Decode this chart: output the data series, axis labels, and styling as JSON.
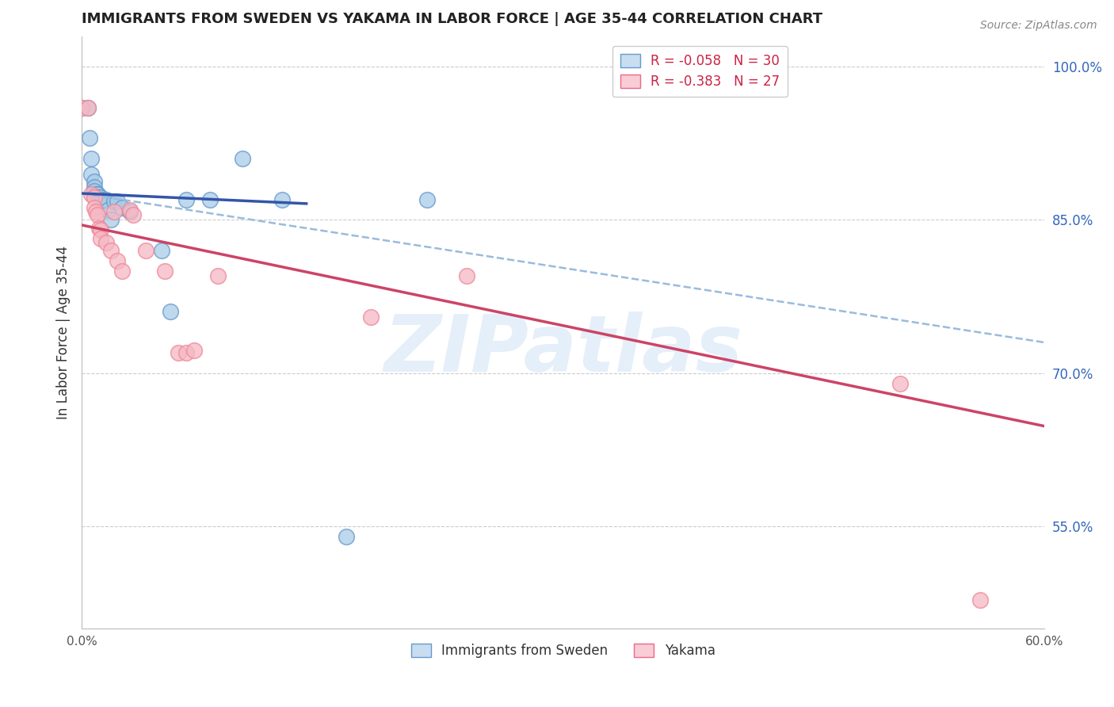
{
  "title": "IMMIGRANTS FROM SWEDEN VS YAKAMA IN LABOR FORCE | AGE 35-44 CORRELATION CHART",
  "source": "Source: ZipAtlas.com",
  "ylabel": "In Labor Force | Age 35-44",
  "xlim": [
    0.0,
    0.6
  ],
  "ylim": [
    0.45,
    1.03
  ],
  "xticks": [
    0.0,
    0.1,
    0.2,
    0.3,
    0.4,
    0.5,
    0.6
  ],
  "xtick_labels": [
    "0.0%",
    "",
    "",
    "",
    "",
    "",
    "60.0%"
  ],
  "yticks_right": [
    0.55,
    0.7,
    0.85,
    1.0
  ],
  "ytick_labels_right": [
    "55.0%",
    "70.0%",
    "85.0%",
    "100.0%"
  ],
  "legend_R_entries": [
    {
      "label": "R = -0.058   N = 30",
      "face": "#c8ddf0",
      "edge": "#6699cc"
    },
    {
      "label": "R = -0.383   N = 27",
      "face": "#f9ccd6",
      "edge": "#ee6688"
    }
  ],
  "legend_labels_bottom": [
    "Immigrants from Sweden",
    "Yakama"
  ],
  "sweden_face_color": "#a8cce8",
  "sweden_edge_color": "#6699cc",
  "yakama_face_color": "#f5b8c4",
  "yakama_edge_color": "#ee8899",
  "sweden_line_color": "#3355aa",
  "yakama_line_color": "#cc4466",
  "sweden_dashed_color": "#99bbdd",
  "grid_color": "#cccccc",
  "background_color": "#ffffff",
  "watermark": "ZIPatlas",
  "sweden_scatter": [
    [
      0.0,
      0.96
    ],
    [
      0.004,
      0.96
    ],
    [
      0.005,
      0.93
    ],
    [
      0.006,
      0.91
    ],
    [
      0.006,
      0.895
    ],
    [
      0.008,
      0.888
    ],
    [
      0.008,
      0.882
    ],
    [
      0.008,
      0.878
    ],
    [
      0.009,
      0.875
    ],
    [
      0.01,
      0.875
    ],
    [
      0.01,
      0.875
    ],
    [
      0.011,
      0.872
    ],
    [
      0.012,
      0.872
    ],
    [
      0.012,
      0.868
    ],
    [
      0.013,
      0.87
    ],
    [
      0.015,
      0.87
    ],
    [
      0.016,
      0.86
    ],
    [
      0.018,
      0.85
    ],
    [
      0.02,
      0.868
    ],
    [
      0.022,
      0.868
    ],
    [
      0.025,
      0.862
    ],
    [
      0.03,
      0.858
    ],
    [
      0.05,
      0.82
    ],
    [
      0.055,
      0.76
    ],
    [
      0.065,
      0.87
    ],
    [
      0.08,
      0.87
    ],
    [
      0.1,
      0.91
    ],
    [
      0.125,
      0.87
    ],
    [
      0.165,
      0.54
    ],
    [
      0.215,
      0.87
    ]
  ],
  "yakama_scatter": [
    [
      0.0,
      0.96
    ],
    [
      0.004,
      0.96
    ],
    [
      0.006,
      0.875
    ],
    [
      0.008,
      0.872
    ],
    [
      0.008,
      0.862
    ],
    [
      0.009,
      0.858
    ],
    [
      0.01,
      0.855
    ],
    [
      0.011,
      0.842
    ],
    [
      0.012,
      0.84
    ],
    [
      0.012,
      0.832
    ],
    [
      0.015,
      0.828
    ],
    [
      0.018,
      0.82
    ],
    [
      0.02,
      0.858
    ],
    [
      0.022,
      0.81
    ],
    [
      0.025,
      0.8
    ],
    [
      0.03,
      0.86
    ],
    [
      0.032,
      0.855
    ],
    [
      0.04,
      0.82
    ],
    [
      0.052,
      0.8
    ],
    [
      0.06,
      0.72
    ],
    [
      0.065,
      0.72
    ],
    [
      0.07,
      0.722
    ],
    [
      0.085,
      0.795
    ],
    [
      0.18,
      0.755
    ],
    [
      0.24,
      0.795
    ],
    [
      0.51,
      0.69
    ],
    [
      0.56,
      0.478
    ]
  ],
  "sweden_solid_line": [
    [
      0.0,
      0.876
    ],
    [
      0.14,
      0.866
    ]
  ],
  "sweden_dashed_line": [
    [
      0.0,
      0.876
    ],
    [
      0.6,
      0.73
    ]
  ],
  "yakama_solid_line": [
    [
      0.0,
      0.845
    ],
    [
      0.6,
      0.648
    ]
  ]
}
